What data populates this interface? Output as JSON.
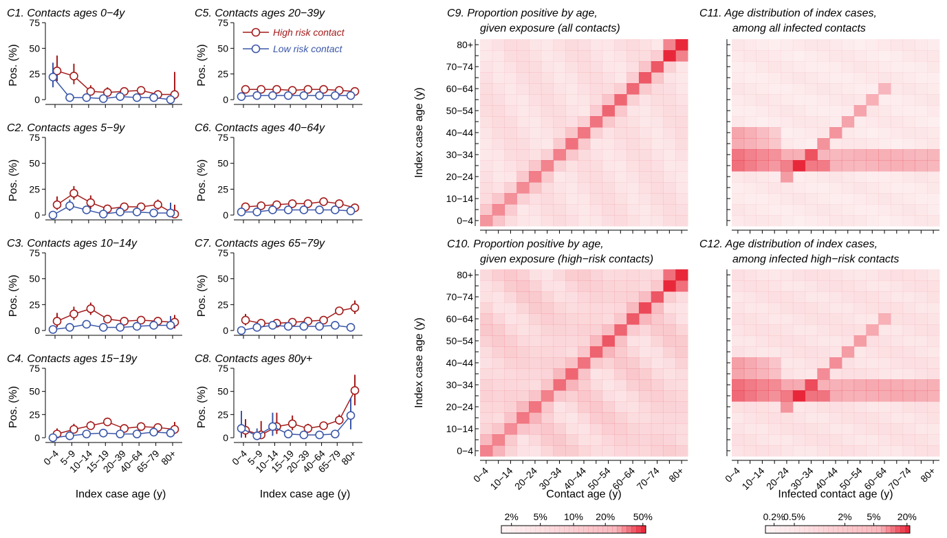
{
  "colors": {
    "high": "#a31a1a",
    "low": "#3a56a8",
    "heat": "#e8283a"
  },
  "small_charts": {
    "y_ticks": [
      "0",
      "25",
      "50",
      "75"
    ],
    "ylim": [
      0,
      75
    ],
    "ylabel": "Pos. (%)",
    "xlabel": "Index case age (y)",
    "x_ticks": [
      "0−4",
      "5−9",
      "10−14",
      "15−19",
      "20−39",
      "40−64",
      "65−79",
      "80+"
    ],
    "legend": {
      "high": "High risk contact",
      "low": "Low risk contact"
    }
  },
  "heatmaps": {
    "y_ticks": [
      "0−4",
      "10−14",
      "20−24",
      "30−34",
      "40−44",
      "50−54",
      "60−64",
      "70−74",
      "80+"
    ],
    "x_ticks": [
      "0−4",
      "10−14",
      "20−24",
      "30−34",
      "40−44",
      "50−54",
      "60−64",
      "70−74",
      "80+"
    ],
    "ylabel": "Index case age (y)",
    "xlabel_left": "Contact age (y)",
    "xlabel_right": "Infected contact age (y)",
    "colorbar_left": [
      "2%",
      "5%",
      "10%",
      "20%",
      "50%"
    ],
    "colorbar_right": [
      "0.2%",
      "0.5%",
      "2%",
      "5%",
      "20%"
    ]
  },
  "chart_data": [
    {
      "type": "line",
      "title": "C1. Contacts ages 0−4y",
      "categories": [
        "0−4",
        "5−9",
        "10−14",
        "15−19",
        "20−39",
        "40−64",
        "65−79",
        "80+"
      ],
      "series": [
        {
          "name": "High risk contact",
          "values": [
            28,
            23,
            8,
            7,
            8,
            9,
            5,
            5
          ],
          "lower": [
            18,
            15,
            4,
            4,
            6,
            7,
            3,
            0
          ],
          "upper": [
            43,
            35,
            14,
            12,
            11,
            12,
            9,
            27
          ]
        },
        {
          "name": "Low risk contact",
          "values": [
            22,
            2,
            2,
            1,
            3,
            2,
            2,
            0
          ],
          "lower": [
            12,
            1,
            1,
            0,
            2,
            1,
            1,
            0
          ],
          "upper": [
            36,
            5,
            4,
            3,
            4,
            4,
            4,
            3
          ]
        }
      ]
    },
    {
      "type": "line",
      "title": "C2. Contacts ages 5−9y",
      "categories": [
        "0−4",
        "5−9",
        "10−14",
        "15−19",
        "20−39",
        "40−64",
        "65−79",
        "80+"
      ],
      "series": [
        {
          "name": "High risk contact",
          "values": [
            10,
            21,
            12,
            6,
            8,
            8,
            10,
            1
          ],
          "lower": [
            5,
            15,
            6,
            3,
            6,
            6,
            5,
            0
          ],
          "upper": [
            18,
            28,
            19,
            10,
            11,
            11,
            15,
            10
          ]
        },
        {
          "name": "Low risk contact",
          "values": [
            0,
            9,
            5,
            1,
            3,
            3,
            2,
            2
          ],
          "lower": [
            0,
            4,
            2,
            0,
            2,
            2,
            1,
            0
          ],
          "upper": [
            3,
            15,
            9,
            3,
            4,
            5,
            4,
            12
          ]
        }
      ]
    },
    {
      "type": "line",
      "title": "C3. Contacts ages 10−14y",
      "categories": [
        "0−4",
        "5−9",
        "10−14",
        "15−19",
        "20−39",
        "40−64",
        "65−79",
        "80+"
      ],
      "series": [
        {
          "name": "High risk contact",
          "values": [
            9,
            16,
            21,
            11,
            9,
            10,
            9,
            8
          ],
          "lower": [
            3,
            10,
            15,
            8,
            7,
            8,
            5,
            2
          ],
          "upper": [
            17,
            23,
            27,
            14,
            11,
            13,
            13,
            15
          ]
        },
        {
          "name": "Low risk contact",
          "values": [
            1,
            3,
            6,
            3,
            3,
            4,
            5,
            5
          ],
          "lower": [
            0,
            1,
            3,
            1,
            2,
            3,
            3,
            1
          ],
          "upper": [
            4,
            6,
            10,
            5,
            4,
            6,
            8,
            14
          ]
        }
      ]
    },
    {
      "type": "line",
      "title": "C4. Contacts ages 15−19y",
      "categories": [
        "0−4",
        "5−9",
        "10−14",
        "15−19",
        "20−39",
        "40−64",
        "65−79",
        "80+"
      ],
      "series": [
        {
          "name": "High risk contact",
          "values": [
            4,
            9,
            13,
            17,
            10,
            12,
            11,
            9
          ],
          "lower": [
            0,
            5,
            9,
            14,
            8,
            9,
            7,
            4
          ],
          "upper": [
            10,
            15,
            18,
            20,
            12,
            15,
            15,
            17
          ]
        },
        {
          "name": "Low risk contact",
          "values": [
            0,
            2,
            4,
            5,
            4,
            4,
            6,
            5
          ],
          "lower": [
            0,
            0,
            2,
            3,
            3,
            3,
            4,
            2
          ],
          "upper": [
            3,
            5,
            7,
            8,
            5,
            6,
            9,
            10
          ]
        }
      ]
    },
    {
      "type": "line",
      "title": "C5. Contacts ages 20−39y",
      "categories": [
        "0−4",
        "5−9",
        "10−14",
        "15−19",
        "20−39",
        "40−64",
        "65−79",
        "80+"
      ],
      "series": [
        {
          "name": "High risk contact",
          "values": [
            10,
            10,
            10,
            9,
            10,
            10,
            9,
            8
          ],
          "lower": [
            8,
            8,
            8,
            8,
            9,
            9,
            7,
            5
          ],
          "upper": [
            12,
            12,
            12,
            11,
            11,
            11,
            11,
            12
          ]
        },
        {
          "name": "Low risk contact",
          "values": [
            3,
            4,
            4,
            4,
            4,
            4,
            4,
            4
          ],
          "lower": [
            2,
            3,
            3,
            3,
            3,
            3,
            3,
            2
          ],
          "upper": [
            4,
            5,
            5,
            5,
            5,
            5,
            6,
            7
          ]
        }
      ]
    },
    {
      "type": "line",
      "title": "C6. Contacts ages 40−64y",
      "categories": [
        "0−4",
        "5−9",
        "10−14",
        "15−19",
        "20−39",
        "40−64",
        "65−79",
        "80+"
      ],
      "series": [
        {
          "name": "High risk contact",
          "values": [
            8,
            9,
            10,
            11,
            11,
            13,
            11,
            7
          ],
          "lower": [
            6,
            7,
            8,
            9,
            10,
            12,
            9,
            5
          ],
          "upper": [
            10,
            11,
            12,
            13,
            12,
            14,
            13,
            10
          ]
        },
        {
          "name": "Low risk contact",
          "values": [
            3,
            3,
            5,
            5,
            5,
            5,
            5,
            4
          ],
          "lower": [
            2,
            2,
            4,
            4,
            4,
            4,
            4,
            3
          ],
          "upper": [
            4,
            5,
            6,
            6,
            6,
            6,
            7,
            6
          ]
        }
      ]
    },
    {
      "type": "line",
      "title": "C7. Contacts ages 65−79y",
      "categories": [
        "0−4",
        "5−9",
        "10−14",
        "15−19",
        "20−39",
        "40−64",
        "65−79",
        "80+"
      ],
      "series": [
        {
          "name": "High risk contact",
          "values": [
            10,
            7,
            7,
            8,
            9,
            10,
            19,
            22
          ],
          "lower": [
            5,
            4,
            4,
            6,
            7,
            8,
            16,
            16
          ],
          "upper": [
            16,
            11,
            10,
            11,
            11,
            12,
            22,
            29
          ]
        },
        {
          "name": "Low risk contact",
          "values": [
            0,
            3,
            5,
            4,
            4,
            4,
            5,
            3
          ],
          "lower": [
            0,
            1,
            3,
            3,
            3,
            3,
            4,
            1
          ],
          "upper": [
            3,
            6,
            8,
            6,
            5,
            6,
            7,
            6
          ]
        }
      ]
    },
    {
      "type": "line",
      "title": "C8. Contacts ages 80y+",
      "categories": [
        "0−4",
        "5−9",
        "10−14",
        "15−19",
        "20−39",
        "40−64",
        "65−79",
        "80+"
      ],
      "series": [
        {
          "name": "High risk contact",
          "values": [
            8,
            3,
            12,
            15,
            10,
            13,
            19,
            51
          ],
          "lower": [
            0,
            0,
            4,
            8,
            6,
            9,
            14,
            35
          ],
          "upper": [
            20,
            18,
            27,
            24,
            15,
            17,
            25,
            68
          ]
        },
        {
          "name": "Low risk contact",
          "values": [
            10,
            2,
            12,
            4,
            3,
            3,
            4,
            24
          ],
          "lower": [
            0,
            0,
            2,
            1,
            1,
            1,
            1,
            9
          ],
          "upper": [
            29,
            10,
            27,
            9,
            6,
            6,
            7,
            43
          ]
        }
      ]
    },
    {
      "type": "heatmap",
      "title": "C9. Proportion positive by age,\ngiven exposure (all contacts)",
      "xlabel": "Contact age (y)",
      "ylabel": "Index case age (y)",
      "scale": "log",
      "colorbar": [
        "2%",
        "5%",
        "10%",
        "20%",
        "50%"
      ]
    },
    {
      "type": "heatmap",
      "title": "C10. Proportion positive by age,\ngiven exposure (high−risk contacts)",
      "xlabel": "Contact age (y)",
      "ylabel": "Index case age (y)",
      "scale": "log",
      "colorbar": [
        "2%",
        "5%",
        "10%",
        "20%",
        "50%"
      ]
    },
    {
      "type": "heatmap",
      "title": "C11. Age distribution of index cases,\namong all infected contacts",
      "xlabel": "Infected contact age (y)",
      "scale": "log",
      "colorbar": [
        "0.2%",
        "0.5%",
        "2%",
        "5%",
        "20%"
      ]
    },
    {
      "type": "heatmap",
      "title": "C12. Age distribution of index cases,\namong infected high−risk contacts",
      "xlabel": "Infected contact age (y)",
      "scale": "log",
      "colorbar": [
        "0.2%",
        "0.5%",
        "2%",
        "5%",
        "20%"
      ]
    }
  ]
}
